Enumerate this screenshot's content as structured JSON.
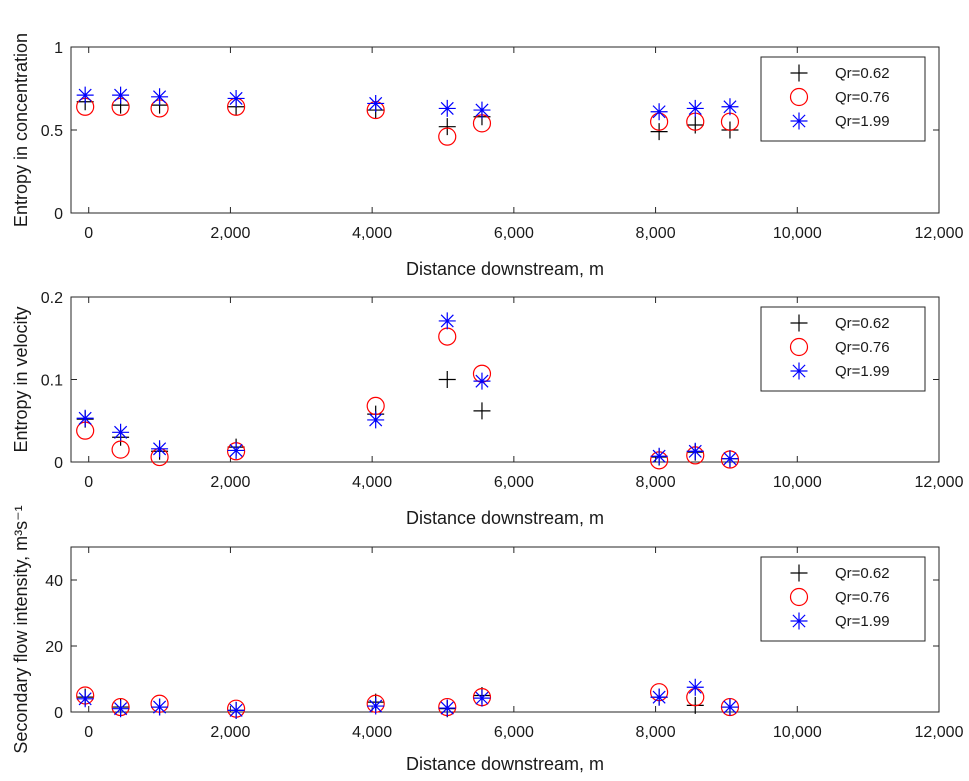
{
  "chart_data": [
    {
      "type": "scatter",
      "xlabel": "Distance downstream, m",
      "ylabel": "Entropy in concentration",
      "xlim": [
        -250,
        12000
      ],
      "ylim": [
        0,
        1
      ],
      "xticks": [
        0,
        2000,
        4000,
        6000,
        8000,
        10000,
        12000
      ],
      "xtick_labels": [
        "0",
        "2,000",
        "4,000",
        "6,000",
        "8,000",
        "10,000",
        "12,000"
      ],
      "yticks": [
        0,
        0.5,
        1
      ],
      "ytick_labels": [
        "0",
        "0.5",
        "1"
      ],
      "legend_position": "top-right",
      "series": [
        {
          "name": "Qr=0.62",
          "marker": "plus",
          "color": "#000000",
          "x": [
            -50,
            450,
            1000,
            2080,
            4050,
            5060,
            5550,
            8050,
            8560,
            9050
          ],
          "y": [
            0.67,
            0.65,
            0.65,
            0.64,
            0.62,
            0.52,
            0.58,
            0.49,
            0.53,
            0.5
          ]
        },
        {
          "name": "Qr=0.76",
          "marker": "circle",
          "color": "#ff0000",
          "x": [
            -50,
            450,
            1000,
            2080,
            4050,
            5060,
            5550,
            8050,
            8560,
            9050
          ],
          "y": [
            0.64,
            0.64,
            0.63,
            0.64,
            0.62,
            0.46,
            0.54,
            0.55,
            0.55,
            0.55
          ]
        },
        {
          "name": "Qr=1.99",
          "marker": "asterisk",
          "color": "#0000ff",
          "x": [
            -50,
            450,
            1000,
            2080,
            4050,
            5060,
            5550,
            8050,
            8560,
            9050
          ],
          "y": [
            0.71,
            0.71,
            0.7,
            0.69,
            0.66,
            0.63,
            0.62,
            0.61,
            0.63,
            0.64
          ]
        }
      ]
    },
    {
      "type": "scatter",
      "xlabel": "Distance downstream, m",
      "ylabel": "Entropy in velocity",
      "xlim": [
        -250,
        12000
      ],
      "ylim": [
        0,
        0.2
      ],
      "xticks": [
        0,
        2000,
        4000,
        6000,
        8000,
        10000,
        12000
      ],
      "xtick_labels": [
        "0",
        "2,000",
        "4,000",
        "6,000",
        "8,000",
        "10,000",
        "12,000"
      ],
      "yticks": [
        0,
        0.1,
        0.2
      ],
      "ytick_labels": [
        "0",
        "0.1",
        "0.2"
      ],
      "legend_position": "top-right",
      "series": [
        {
          "name": "Qr=0.62",
          "marker": "plus",
          "color": "#000000",
          "x": [
            -50,
            450,
            1000,
            2080,
            4050,
            5060,
            5550,
            8050,
            8560,
            9050
          ],
          "y": [
            0.052,
            0.03,
            0.013,
            0.018,
            0.058,
            0.1,
            0.062,
            0.006,
            0.012,
            0.004
          ]
        },
        {
          "name": "Qr=0.76",
          "marker": "circle",
          "color": "#ff0000",
          "x": [
            -50,
            450,
            1000,
            2080,
            4050,
            5060,
            5550,
            8050,
            8560,
            9050
          ],
          "y": [
            0.038,
            0.015,
            0.006,
            0.013,
            0.068,
            0.152,
            0.107,
            0.002,
            0.008,
            0.003
          ]
        },
        {
          "name": "Qr=1.99",
          "marker": "asterisk",
          "color": "#0000ff",
          "x": [
            -50,
            450,
            1000,
            2080,
            4050,
            5060,
            5550,
            8050,
            8560,
            9050
          ],
          "y": [
            0.053,
            0.036,
            0.016,
            0.014,
            0.051,
            0.171,
            0.098,
            0.007,
            0.013,
            0.004
          ]
        }
      ]
    },
    {
      "type": "scatter",
      "xlabel": "Distance downstream, m",
      "ylabel": "Secondary flow intensity, m³s⁻¹",
      "xlim": [
        -250,
        12000
      ],
      "ylim": [
        0,
        50
      ],
      "xticks": [
        0,
        2000,
        4000,
        6000,
        8000,
        10000,
        12000
      ],
      "xtick_labels": [
        "0",
        "2,000",
        "4,000",
        "6,000",
        "8,000",
        "10,000",
        "12,000"
      ],
      "yticks": [
        0,
        20,
        40
      ],
      "ytick_labels": [
        "0",
        "20",
        "40"
      ],
      "legend_position": "top-right",
      "series": [
        {
          "name": "Qr=0.62",
          "marker": "plus",
          "color": "#000000",
          "x": [
            -50,
            450,
            1000,
            2080,
            4050,
            5060,
            5550,
            8050,
            8560,
            9050
          ],
          "y": [
            4.5,
            1.5,
            1.5,
            0.5,
            3.0,
            1.0,
            5.0,
            4.5,
            2.0,
            1.5
          ]
        },
        {
          "name": "Qr=0.76",
          "marker": "circle",
          "color": "#ff0000",
          "x": [
            -50,
            450,
            1000,
            2080,
            4050,
            5060,
            5550,
            8050,
            8560,
            9050
          ],
          "y": [
            5.0,
            1.5,
            2.5,
            1.0,
            2.5,
            1.5,
            4.5,
            6.0,
            4.5,
            1.5
          ]
        },
        {
          "name": "Qr=1.99",
          "marker": "asterisk",
          "color": "#0000ff",
          "x": [
            -50,
            450,
            1000,
            2080,
            4050,
            5060,
            5550,
            8050,
            8560,
            9050
          ],
          "y": [
            4.0,
            1.0,
            1.5,
            0.5,
            1.8,
            1.2,
            4.2,
            4.5,
            7.5,
            1.5
          ]
        }
      ]
    }
  ]
}
